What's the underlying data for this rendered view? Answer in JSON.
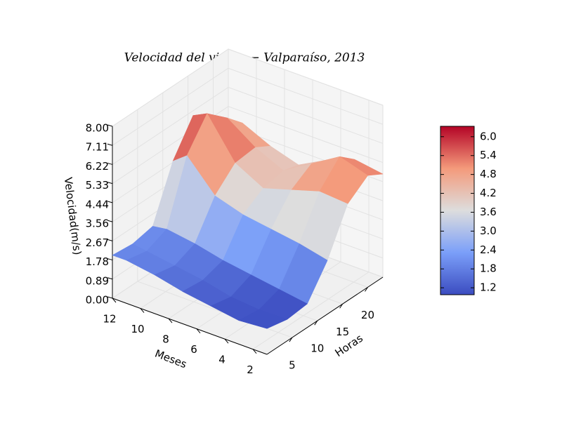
{
  "chart_data": {
    "type": "surface3d",
    "title": "Velocidad del viento − Valparaíso, 2013",
    "xlabel": "Horas",
    "ylabel": "Meses",
    "zlabel": "Velocidad(m/s)",
    "hours": [
      0,
      4,
      8,
      12,
      16,
      20,
      23
    ],
    "months": [
      1,
      3,
      5,
      7,
      9,
      11,
      12
    ],
    "z": [
      [
        1.2,
        1.0,
        1.1,
        2.5,
        4.5,
        5.2,
        4.8
      ],
      [
        1.1,
        0.98,
        1.3,
        2.8,
        4.6,
        5.6,
        5.0
      ],
      [
        1.3,
        1.1,
        1.5,
        3.0,
        4.2,
        4.8,
        4.5
      ],
      [
        1.5,
        1.4,
        1.7,
        3.2,
        3.8,
        4.0,
        3.8
      ],
      [
        1.8,
        1.6,
        2.0,
        3.6,
        4.5,
        4.6,
        4.2
      ],
      [
        2.0,
        1.8,
        2.2,
        5.0,
        6.33,
        5.5,
        4.8
      ],
      [
        2.0,
        1.9,
        2.1,
        4.5,
        6.0,
        5.2,
        4.6
      ]
    ],
    "xlim": [
      0,
      23
    ],
    "ylim": [
      1,
      12
    ],
    "zlim": [
      0,
      8
    ],
    "xticks": [
      5,
      10,
      15,
      20
    ],
    "yticks": [
      2,
      4,
      6,
      8,
      10,
      12
    ],
    "zticks": [
      {
        "value": 0,
        "label": "0.00"
      },
      {
        "value": 0.8889,
        "label": "0.89"
      },
      {
        "value": 1.7778,
        "label": "1.78"
      },
      {
        "value": 2.6667,
        "label": "2.67"
      },
      {
        "value": 3.5556,
        "label": "3.56"
      },
      {
        "value": 4.4444,
        "label": "4.44"
      },
      {
        "value": 5.3333,
        "label": "5.33"
      },
      {
        "value": 6.2222,
        "label": "6.22"
      },
      {
        "value": 7.1111,
        "label": "7.11"
      },
      {
        "value": 8,
        "label": "8.00"
      }
    ],
    "colormap": "coolwarm",
    "clim": [
      0.98,
      6.33
    ],
    "cbar_ticks": [
      1.2,
      1.8,
      2.4,
      {
        "value": 3,
        "label": "3.0"
      },
      3.6,
      4.2,
      4.8,
      5.4,
      {
        "value": 6,
        "label": "6.0"
      }
    ]
  }
}
